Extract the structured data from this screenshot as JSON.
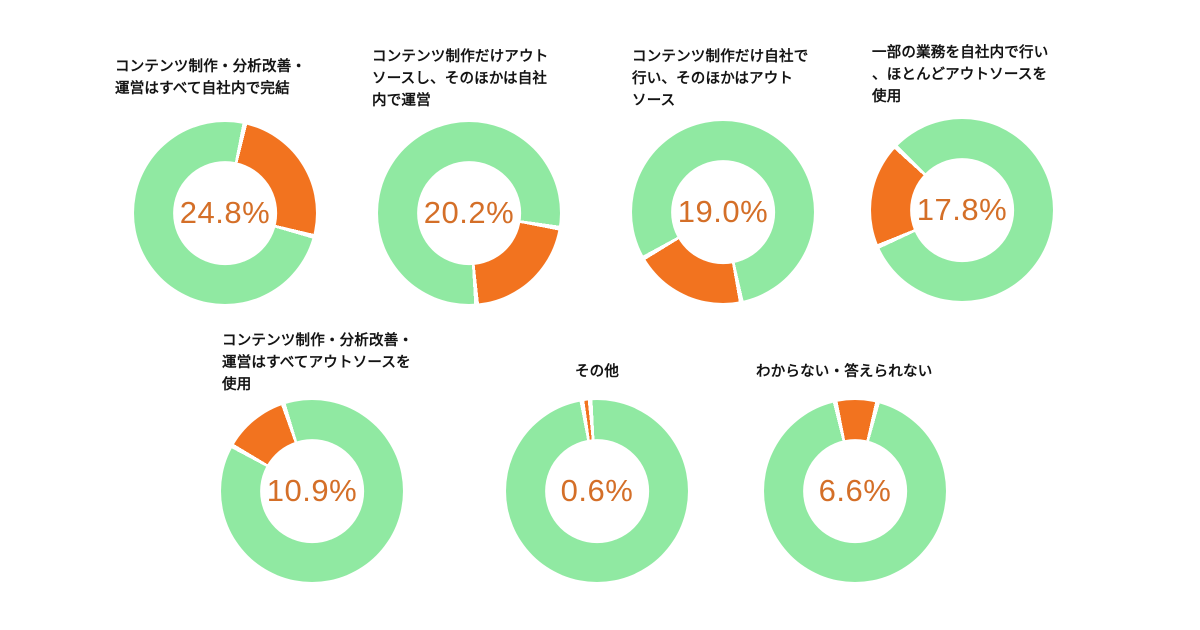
{
  "page": {
    "background": "#ffffff",
    "language": "ja",
    "description": "7 donut charts showing survey result percentages"
  },
  "colors": {
    "segment_green": "#90e9a2",
    "segment_orange": "#f2731f",
    "value_text": "#d46f28",
    "title_text": "#141414",
    "gap_white": "#ffffff"
  },
  "chart_data": [
    {
      "type": "donut",
      "title": "コンテンツ制作・分析改善・\n運営はすべて自社内で完結",
      "value_pct": 24.8,
      "label": "24.8%",
      "start_angle_deg": 14,
      "highlight_color": "#f2731f",
      "rest_color": "#90e9a2"
    },
    {
      "type": "donut",
      "title": "コンテンツ制作だけアウト\nソースし、そのほかは自社\n内で運営",
      "value_pct": 20.2,
      "label": "20.2%",
      "start_angle_deg": 101,
      "highlight_color": "#f2731f",
      "rest_color": "#90e9a2"
    },
    {
      "type": "donut",
      "title": "コンテンツ制作だけ自社で\n行い、そのほかはアウト\nソース",
      "value_pct": 19.0,
      "label": "19.0%",
      "start_angle_deg": 170,
      "highlight_color": "#f2731f",
      "rest_color": "#90e9a2"
    },
    {
      "type": "donut",
      "title": "一部の業務を自社内で行い\n、ほとんどアウトソースを\n使用",
      "value_pct": 17.8,
      "label": "17.8%",
      "start_angle_deg": 248,
      "highlight_color": "#f2731f",
      "rest_color": "#90e9a2"
    },
    {
      "type": "donut",
      "title": "コンテンツ制作・分析改善・\n運営はすべてアウトソースを\n使用",
      "value_pct": 10.9,
      "label": "10.9%",
      "start_angle_deg": 301,
      "highlight_color": "#f2731f",
      "rest_color": "#90e9a2"
    },
    {
      "type": "donut",
      "title": "その他",
      "value_pct": 0.6,
      "label": "0.6%",
      "start_angle_deg": 352,
      "highlight_color": "#f2731f",
      "rest_color": "#90e9a2"
    },
    {
      "type": "donut",
      "title": "わからない・答えられない",
      "value_pct": 6.6,
      "label": "6.6%",
      "start_angle_deg": 349,
      "highlight_color": "#f2731f",
      "rest_color": "#90e9a2"
    }
  ]
}
